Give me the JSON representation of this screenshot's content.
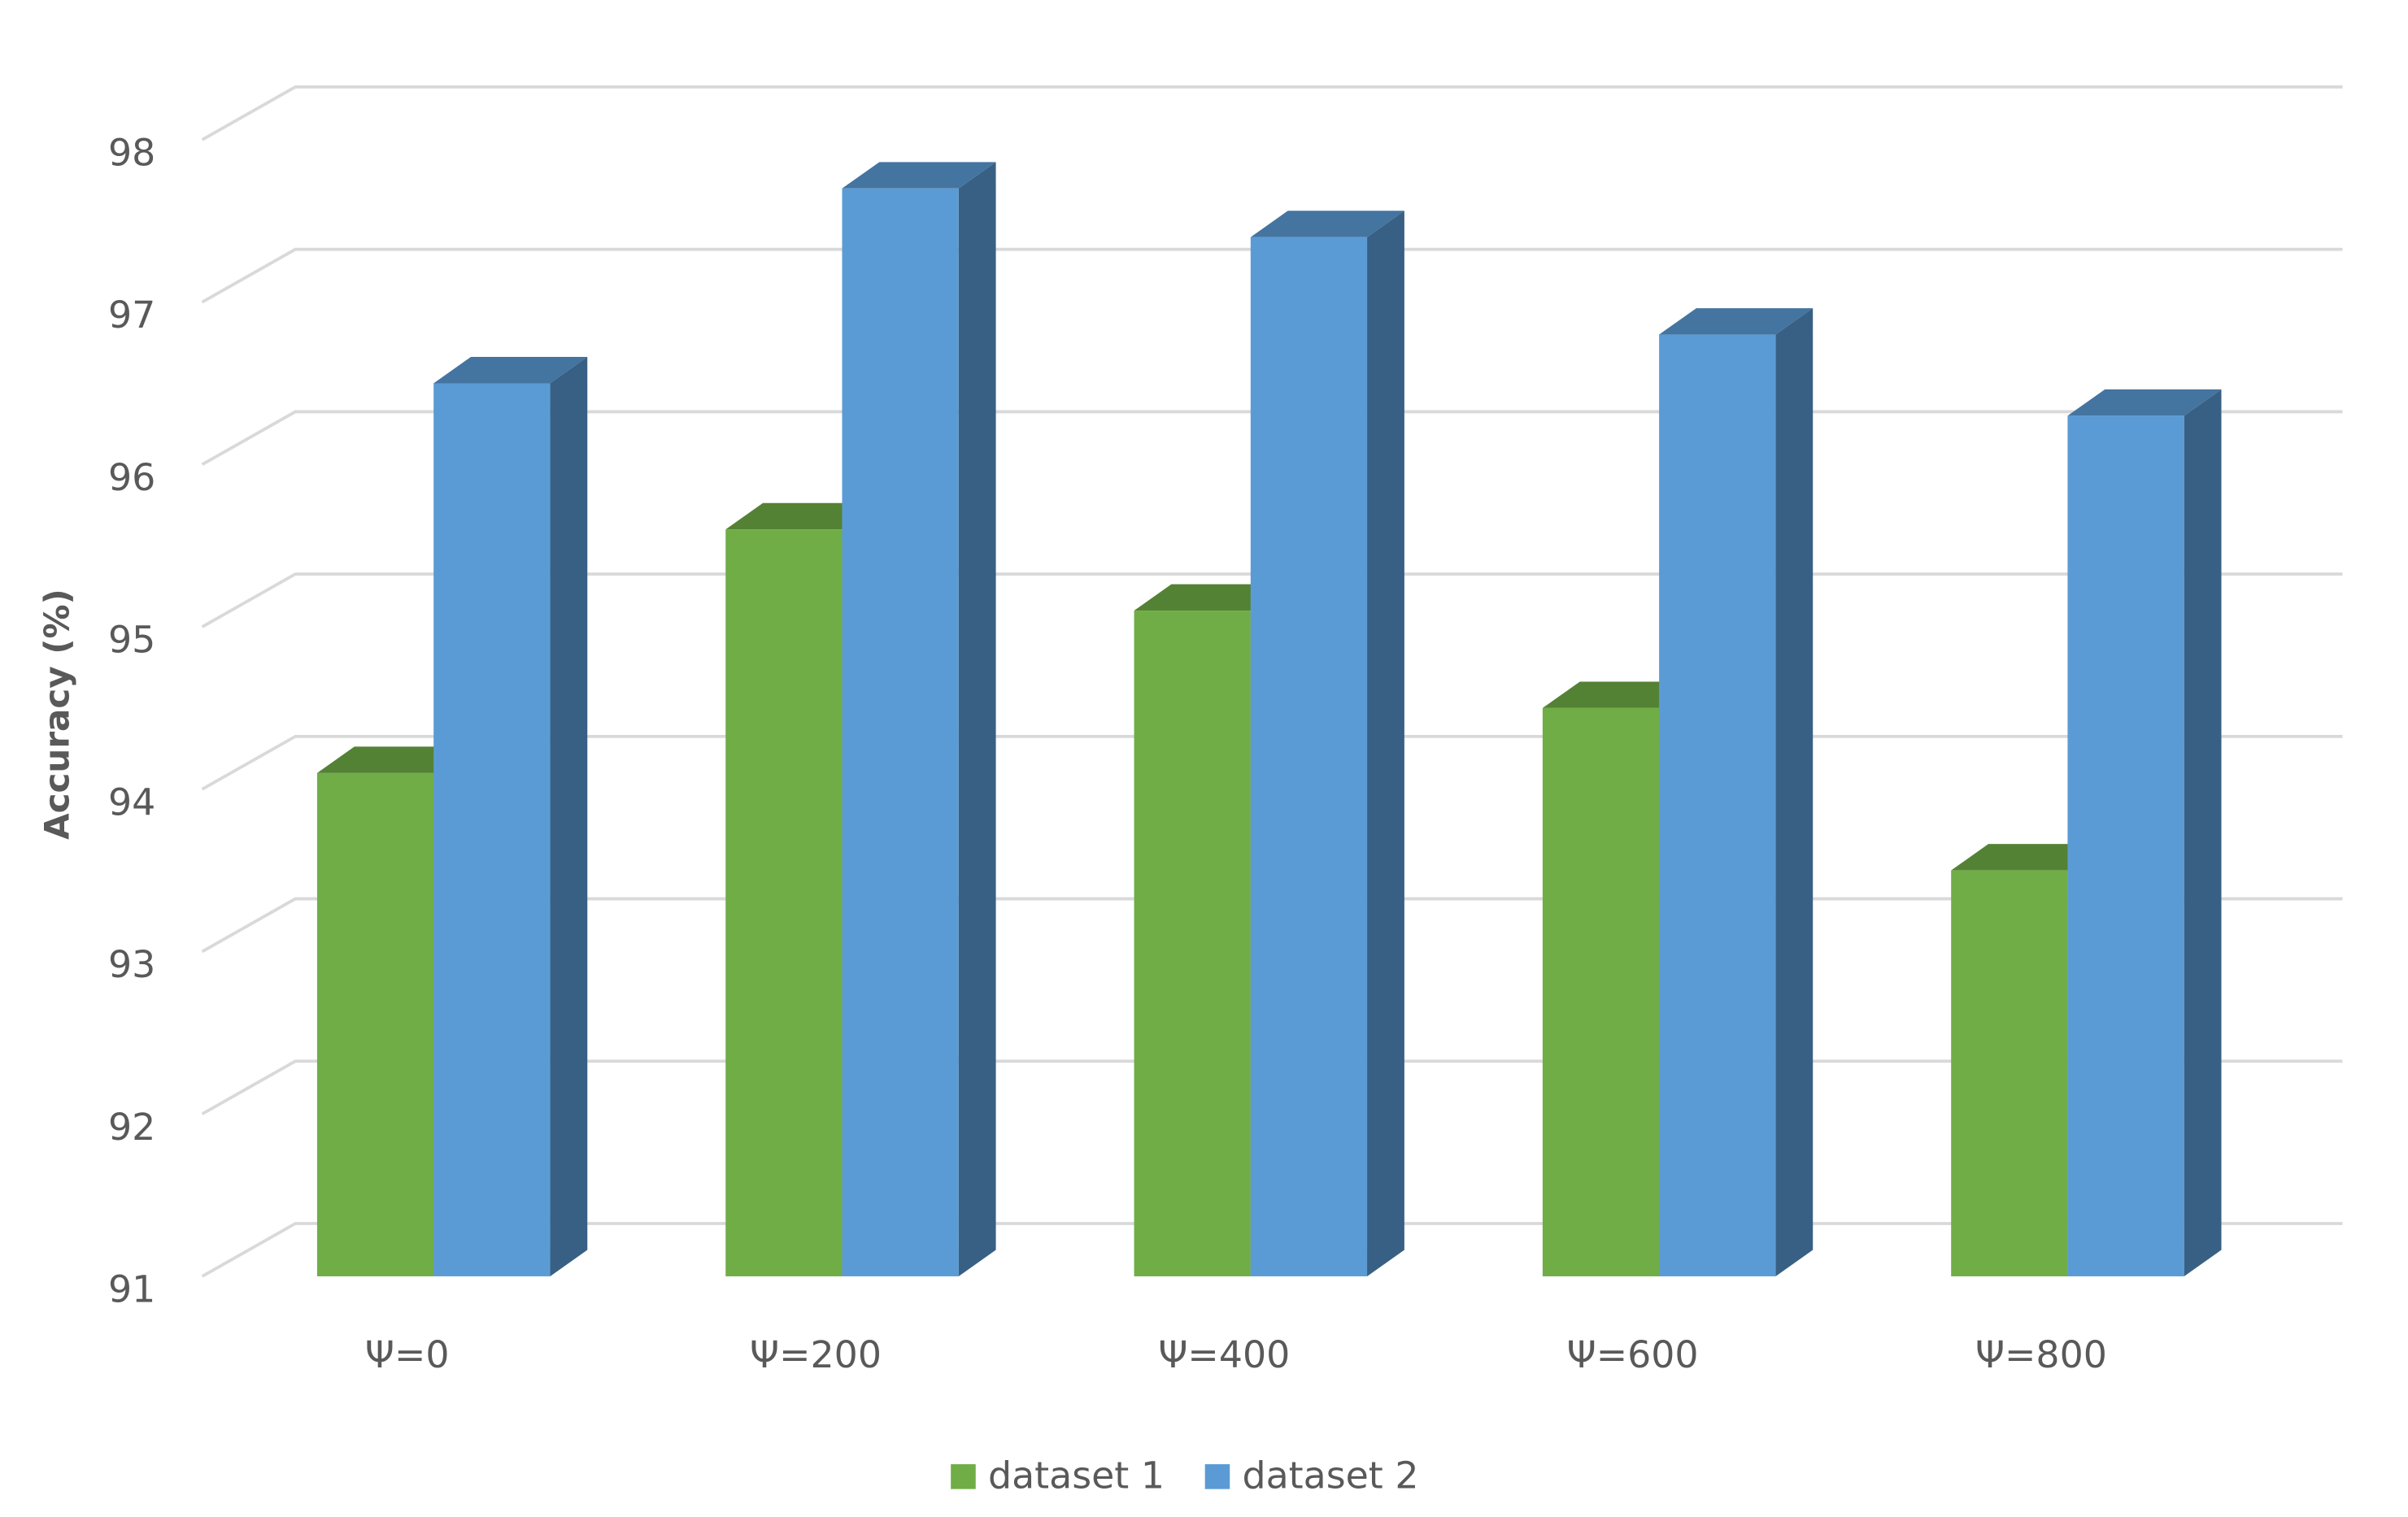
{
  "chart_data": {
    "type": "bar3d",
    "y_label": "Accuracy  (%)",
    "categories": [
      "Ψ=0",
      "Ψ=200",
      "Ψ=400",
      "Ψ=600",
      "Ψ=800"
    ],
    "series": [
      {
        "name": "dataset 1",
        "color": "#70ad47",
        "values": [
          94.1,
          95.6,
          95.1,
          94.5,
          93.5
        ]
      },
      {
        "name": "dataset 2",
        "color": "#5b9bd5",
        "values": [
          96.5,
          97.7,
          97.4,
          96.8,
          96.3
        ]
      }
    ],
    "ylim": [
      91,
      98
    ],
    "yticks": [
      91,
      92,
      93,
      94,
      95,
      96,
      97,
      98
    ],
    "grid": true
  }
}
